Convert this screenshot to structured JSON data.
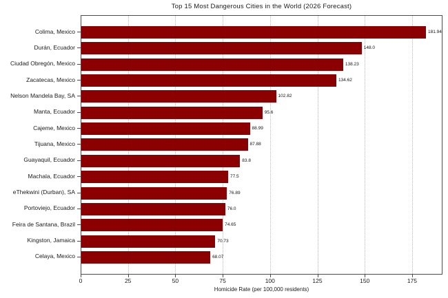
{
  "chart_data": {
    "type": "bar",
    "orientation": "horizontal",
    "title": "Top 15 Most Dangerous Cities in the World (2026 Forecast)",
    "xlabel": "Homicide Rate (per 100,000 residents)",
    "ylabel": "",
    "categories": [
      "Colima, Mexico",
      "Durán, Ecuador",
      "Ciudad Obregón, Mexico",
      "Zacatecas, Mexico",
      "Nelson Mandela Bay, SA",
      "Manta, Ecuador",
      "Cajeme, Mexico",
      "Tijuana, Mexico",
      "Guayaquil, Ecuador",
      "Machala, Ecuador",
      "eThekwini (Durban), SA",
      "Portoviejo, Ecuador",
      "Feira de Santana, Brazil",
      "Kingston, Jamaica",
      "Celaya, Mexico"
    ],
    "values": [
      181.94,
      148.0,
      138.23,
      134.62,
      102.82,
      95.6,
      88.99,
      87.88,
      83.8,
      77.5,
      76.89,
      76.0,
      74.65,
      70.73,
      68.07
    ],
    "value_labels": [
      "181.94",
      "148.0",
      "138.23",
      "134.62",
      "102.82",
      "95.6",
      "88.99",
      "87.88",
      "83.8",
      "77.5",
      "76.89",
      "76.0",
      "74.65",
      "70.73",
      "68.07"
    ],
    "x_ticks": [
      0,
      25,
      50,
      75,
      100,
      125,
      150,
      175
    ],
    "x_tick_labels": [
      "0",
      "25",
      "50",
      "75",
      "100",
      "125",
      "150",
      "175"
    ],
    "xlim": [
      0,
      191.04
    ],
    "grid": "vertical-dotted",
    "legend": "none",
    "bar_color": "#8B0000",
    "grid_color": "#b9b9b9",
    "text_color": "#1a1a1a"
  }
}
